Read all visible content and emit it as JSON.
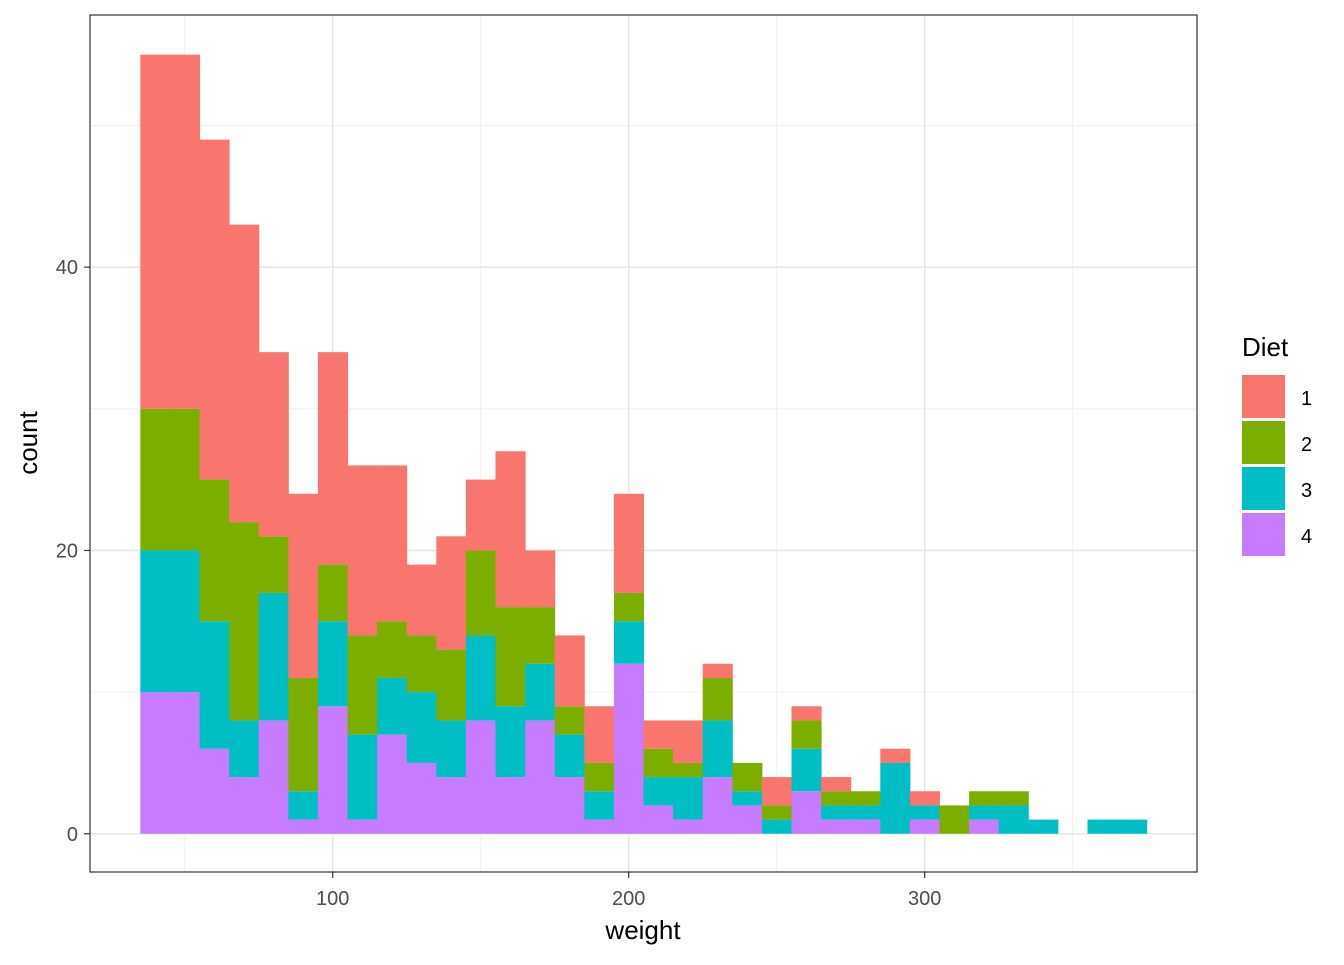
{
  "chart_data": {
    "type": "bar",
    "stacked": true,
    "xlabel": "weight",
    "ylabel": "count",
    "binwidth": 10,
    "x": [
      40,
      50,
      60,
      70,
      80,
      90,
      100,
      110,
      120,
      130,
      140,
      150,
      160,
      170,
      180,
      190,
      200,
      210,
      220,
      230,
      240,
      250,
      260,
      270,
      280,
      290,
      300,
      310,
      320,
      330,
      340,
      350,
      360,
      370
    ],
    "xlim": [
      18,
      392
    ],
    "ylim": [
      -2.7,
      57.8
    ],
    "xticks": [
      100,
      200,
      300
    ],
    "yticks": [
      0,
      20,
      40
    ],
    "grid": true,
    "legend": {
      "title": "Diet",
      "placement": "right"
    },
    "series": [
      {
        "name": "1",
        "color": "#F8766D",
        "values": [
          25,
          25,
          24,
          21,
          13,
          13,
          15,
          12,
          11,
          5,
          8,
          5,
          11,
          4,
          5,
          4,
          7,
          2,
          3,
          1,
          0,
          2,
          1,
          1,
          0,
          1,
          1,
          0,
          0,
          0,
          0,
          0,
          0,
          0
        ]
      },
      {
        "name": "2",
        "color": "#7CAE00",
        "values": [
          10,
          10,
          10,
          14,
          4,
          8,
          4,
          7,
          4,
          4,
          5,
          6,
          7,
          4,
          2,
          2,
          2,
          2,
          1,
          3,
          2,
          1,
          2,
          1,
          1,
          0,
          0,
          2,
          1,
          1,
          0,
          0,
          0,
          0
        ]
      },
      {
        "name": "3",
        "color": "#00BFC4",
        "values": [
          10,
          10,
          9,
          4,
          9,
          2,
          6,
          6,
          4,
          5,
          4,
          6,
          5,
          4,
          3,
          2,
          3,
          2,
          3,
          4,
          1,
          1,
          3,
          1,
          1,
          5,
          1,
          0,
          1,
          2,
          1,
          0,
          1,
          1
        ]
      },
      {
        "name": "4",
        "color": "#C77CFF",
        "values": [
          10,
          10,
          6,
          4,
          8,
          1,
          9,
          1,
          7,
          5,
          4,
          8,
          4,
          8,
          4,
          1,
          12,
          2,
          1,
          4,
          2,
          0,
          3,
          1,
          1,
          0,
          1,
          0,
          1,
          0,
          0,
          0,
          0,
          0
        ]
      }
    ]
  }
}
